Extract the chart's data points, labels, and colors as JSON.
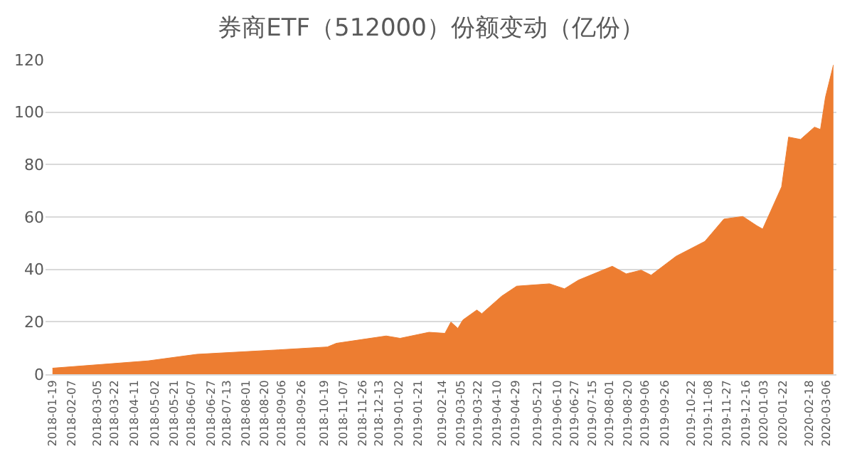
{
  "chart_data": {
    "type": "area",
    "title": "券商ETF（512000）份额变动（亿份）",
    "x": [
      "2018-01-19",
      "2018-04-25",
      "2018-06-13",
      "2018-09-03",
      "2018-10-22",
      "2018-10-31",
      "2018-12-20",
      "2019-01-03",
      "2019-02-01",
      "2019-02-17",
      "2019-02-23",
      "2019-03-02",
      "2019-03-07",
      "2019-03-21",
      "2019-03-26",
      "2019-04-15",
      "2019-04-30",
      "2019-06-02",
      "2019-06-17",
      "2019-07-01",
      "2019-08-04",
      "2019-08-18",
      "2019-09-02",
      "2019-09-12",
      "2019-10-07",
      "2019-11-05",
      "2019-11-24",
      "2019-12-13",
      "2019-12-27",
      "2020-01-02",
      "2020-01-21",
      "2020-01-28",
      "2020-02-09",
      "2020-02-23",
      "2020-02-29",
      "2020-03-05",
      "2020-03-13"
    ],
    "series": [
      {
        "color": "#ed7d31",
        "values": [
          2.3,
          5.1,
          7.6,
          9.3,
          10.4,
          11.8,
          14.6,
          13.7,
          16.0,
          15.6,
          19.9,
          17.5,
          20.7,
          24.5,
          23.1,
          29.8,
          33.6,
          34.5,
          32.6,
          35.9,
          41.2,
          38.3,
          39.7,
          37.8,
          45.0,
          50.7,
          59.2,
          60.2,
          56.7,
          55.4,
          71.5,
          90.5,
          89.6,
          94.3,
          93.4,
          105.7,
          118
        ]
      }
    ],
    "xlim": [
      "2018-01-12",
      "2020-03-16"
    ],
    "xticks": [
      "2018-01-19",
      "2018-02-07",
      "2018-03-05",
      "2018-03-22",
      "2018-04-11",
      "2018-05-02",
      "2018-05-21",
      "2018-06-07",
      "2018-06-27",
      "2018-07-13",
      "2018-08-01",
      "2018-08-20",
      "2018-09-06",
      "2018-09-26",
      "2018-10-19",
      "2018-11-07",
      "2018-11-26",
      "2018-12-13",
      "2019-01-02",
      "2019-01-21",
      "2019-02-14",
      "2019-03-05",
      "2019-03-22",
      "2019-04-10",
      "2019-04-29",
      "2019-05-21",
      "2019-06-10",
      "2019-06-27",
      "2019-07-15",
      "2019-08-01",
      "2019-08-20",
      "2019-09-06",
      "2019-09-26",
      "2019-10-22",
      "2019-11-08",
      "2019-11-27",
      "2019-12-16",
      "2020-01-03",
      "2020-01-22",
      "2020-02-18",
      "2020-03-06"
    ],
    "ylim": [
      0,
      120
    ],
    "yticks": [
      0,
      20,
      40,
      60,
      80,
      100,
      120
    ],
    "grid": "y"
  }
}
